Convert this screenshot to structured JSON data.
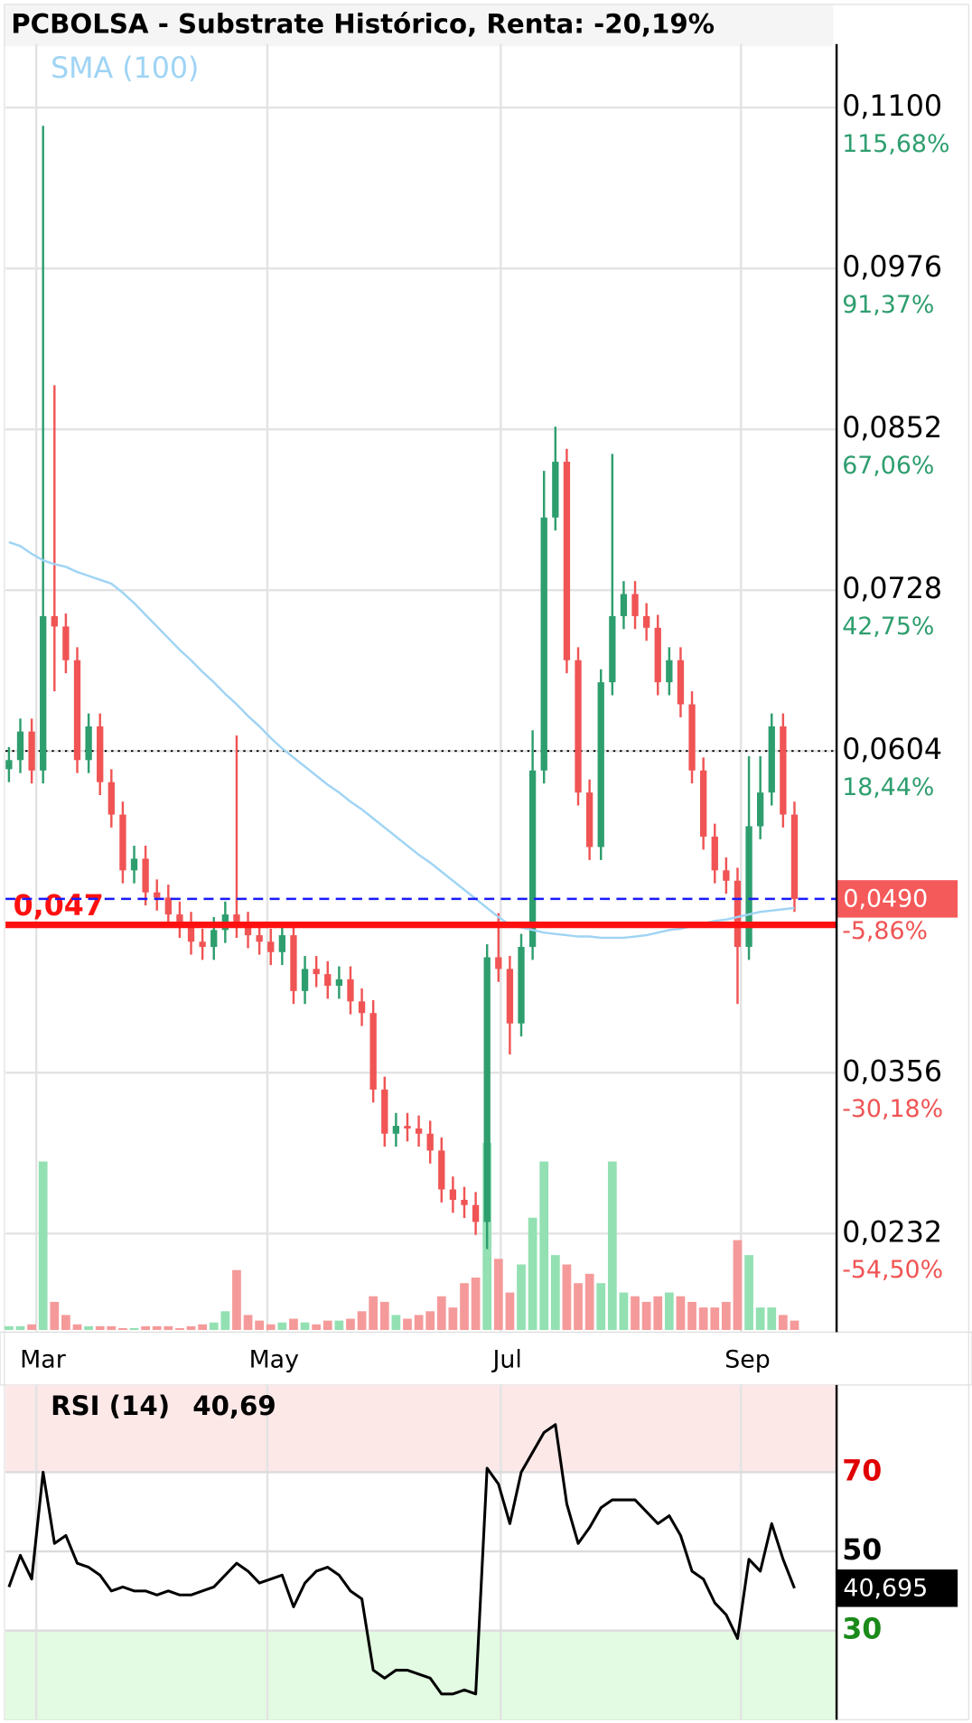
{
  "chart_data": [
    {
      "type": "candlestick",
      "title": "PCBOLSA - Substrate Histórico, Renta: -20,19%",
      "indicator_label": "SMA (100)",
      "open": [
        0.059,
        0.0597,
        0.0619,
        0.0589,
        0.0708,
        0.07,
        0.0674,
        0.0597,
        0.0623,
        0.058,
        0.0555,
        0.0512,
        0.0521,
        0.0495,
        0.0491,
        0.0478,
        0.047,
        0.0457,
        0.0453,
        0.0466,
        0.0478,
        0.047,
        0.0462,
        0.0457,
        0.0449,
        0.0462,
        0.0419,
        0.0436,
        0.0432,
        0.0423,
        0.0428,
        0.0411,
        0.0402,
        0.0343,
        0.0309,
        0.0315,
        0.0313,
        0.0309,
        0.0296,
        0.0266,
        0.0258,
        0.0254,
        0.0241,
        0.0445,
        0.0436,
        0.0394,
        0.0453,
        0.0589,
        0.0784,
        0.0827,
        0.0674,
        0.0572,
        0.053,
        0.0657,
        0.0708,
        0.0725,
        0.0708,
        0.0699,
        0.0657,
        0.0674,
        0.064,
        0.0589,
        0.0538,
        0.0512,
        0.0504,
        0.0453,
        0.0546,
        0.0572,
        0.0623,
        0.0555
      ],
      "high": [
        0.0607,
        0.0629,
        0.0629,
        0.1086,
        0.0886,
        0.071,
        0.0684,
        0.0633,
        0.0633,
        0.059,
        0.0565,
        0.0531,
        0.0531,
        0.0505,
        0.0501,
        0.0488,
        0.048,
        0.0467,
        0.0476,
        0.0488,
        0.0616,
        0.048,
        0.0472,
        0.0467,
        0.0472,
        0.0472,
        0.0446,
        0.0446,
        0.0442,
        0.0438,
        0.0438,
        0.0421,
        0.0412,
        0.0353,
        0.0325,
        0.0325,
        0.0323,
        0.0319,
        0.0306,
        0.0276,
        0.0268,
        0.0264,
        0.0455,
        0.0479,
        0.0446,
        0.0463,
        0.062,
        0.082,
        0.0854,
        0.0837,
        0.0684,
        0.0582,
        0.0667,
        0.0833,
        0.0735,
        0.0735,
        0.0718,
        0.0709,
        0.0684,
        0.0684,
        0.065,
        0.0599,
        0.0548,
        0.0522,
        0.0514,
        0.06,
        0.06,
        0.0633,
        0.0633,
        0.0565
      ],
      "low": [
        0.058,
        0.0587,
        0.0579,
        0.0579,
        0.065,
        0.0664,
        0.0587,
        0.0587,
        0.057,
        0.0545,
        0.0502,
        0.0502,
        0.0485,
        0.0481,
        0.0468,
        0.046,
        0.0447,
        0.0443,
        0.0443,
        0.0456,
        0.046,
        0.0452,
        0.0447,
        0.0439,
        0.0439,
        0.0409,
        0.0409,
        0.0422,
        0.0413,
        0.0413,
        0.0401,
        0.0392,
        0.0333,
        0.0299,
        0.0299,
        0.0303,
        0.0299,
        0.0286,
        0.0256,
        0.0248,
        0.0244,
        0.0231,
        0.022,
        0.0426,
        0.037,
        0.0384,
        0.0443,
        0.0579,
        0.0774,
        0.0664,
        0.0562,
        0.052,
        0.052,
        0.0647,
        0.0698,
        0.0698,
        0.0689,
        0.0647,
        0.0647,
        0.063,
        0.0579,
        0.0528,
        0.0502,
        0.0494,
        0.0409,
        0.0443,
        0.0536,
        0.0562,
        0.0545,
        0.048
      ],
      "close": [
        0.0597,
        0.0619,
        0.0589,
        0.0708,
        0.07,
        0.0674,
        0.0597,
        0.0623,
        0.058,
        0.0555,
        0.0512,
        0.0521,
        0.0495,
        0.0491,
        0.0478,
        0.047,
        0.0457,
        0.0453,
        0.0466,
        0.0478,
        0.047,
        0.0462,
        0.0457,
        0.0449,
        0.0462,
        0.0419,
        0.0436,
        0.0432,
        0.0423,
        0.0428,
        0.0411,
        0.0402,
        0.0343,
        0.0309,
        0.0315,
        0.0313,
        0.0309,
        0.0296,
        0.0266,
        0.0258,
        0.0254,
        0.0241,
        0.0445,
        0.0436,
        0.0394,
        0.0453,
        0.0589,
        0.0784,
        0.0827,
        0.0674,
        0.0572,
        0.053,
        0.0657,
        0.0708,
        0.0725,
        0.0708,
        0.0699,
        0.0657,
        0.0674,
        0.064,
        0.0589,
        0.0538,
        0.0512,
        0.0504,
        0.0453,
        0.0546,
        0.0572,
        0.0623,
        0.0555,
        0.049
      ],
      "volume": [
        2,
        2,
        3,
        90,
        15,
        8,
        3,
        2,
        2,
        2,
        1,
        1,
        2,
        2,
        2,
        1,
        2,
        3,
        4,
        10,
        32,
        8,
        5,
        3,
        4,
        6,
        4,
        3,
        5,
        5,
        6,
        10,
        18,
        15,
        8,
        6,
        8,
        10,
        18,
        12,
        25,
        28,
        100,
        38,
        20,
        35,
        60,
        90,
        40,
        35,
        25,
        30,
        25,
        90,
        20,
        18,
        15,
        18,
        20,
        18,
        15,
        12,
        12,
        15,
        48,
        40,
        12,
        12,
        8,
        5
      ],
      "sma": [
        0.0765,
        0.0762,
        0.0756,
        0.0751,
        0.0748,
        0.0746,
        0.0742,
        0.0739,
        0.0736,
        0.0733,
        0.0726,
        0.0718,
        0.0709,
        0.07,
        0.0691,
        0.0682,
        0.0674,
        0.0665,
        0.0657,
        0.0648,
        0.064,
        0.0631,
        0.0623,
        0.0614,
        0.0606,
        0.0599,
        0.0592,
        0.0585,
        0.0578,
        0.0572,
        0.0565,
        0.0559,
        0.0552,
        0.0545,
        0.0538,
        0.0531,
        0.0524,
        0.0518,
        0.0511,
        0.0504,
        0.0497,
        0.049,
        0.0483,
        0.0476,
        0.047,
        0.0468,
        0.0466,
        0.0464,
        0.0463,
        0.0462,
        0.0461,
        0.0461,
        0.046,
        0.046,
        0.046,
        0.0461,
        0.0462,
        0.0464,
        0.0466,
        0.0467,
        0.0469,
        0.0471,
        0.0473,
        0.0474,
        0.0476,
        0.0478,
        0.048,
        0.0481,
        0.0482,
        0.0483
      ],
      "up_color": "#2e9e6e",
      "down_color": "#f05454",
      "up_volume_color": "#93e0b3",
      "down_volume_color": "#f59a9a",
      "sma_color": "#9fd4f5",
      "xlim": [
        -0.3,
        72.7
      ],
      "xticks": [
        {
          "value": 2.4,
          "label": "Mar"
        },
        {
          "value": 22.7,
          "label": "May"
        },
        {
          "value": 43.2,
          "label": "Jul"
        },
        {
          "value": 64.3,
          "label": "Sep"
        }
      ],
      "ylim": [
        0.0156,
        0.1149
      ],
      "yticks": [
        {
          "value": 0.0232,
          "label": "0,0232"
        },
        {
          "value": 0.0356,
          "label": "0,0356"
        },
        {
          "value": 0.0604,
          "label": "0,0604"
        },
        {
          "value": 0.0728,
          "label": "0,0728"
        },
        {
          "value": 0.0852,
          "label": "0,0852"
        },
        {
          "value": 0.0976,
          "label": "0,0976"
        },
        {
          "value": 0.11,
          "label": "0,1100"
        }
      ],
      "ytick_returns": [
        "-54,50%",
        "-30,18%",
        "18,44%",
        "42,75%",
        "67,06%",
        "91,37%",
        "115,68%"
      ],
      "reference_price": 0.0604,
      "last_price": 0.049,
      "last_price_label": "0,0490",
      "last_return": "-5,86%",
      "support": 0.047,
      "support_label": "0,047",
      "grid": true
    },
    {
      "type": "line",
      "title": "RSI (14)",
      "value_label": "40,69",
      "values": [
        41,
        49,
        43,
        70,
        52,
        54,
        47,
        46,
        44,
        40,
        41,
        40,
        40,
        39,
        40,
        39,
        39,
        40,
        41,
        44,
        47,
        45,
        42,
        43,
        44,
        36,
        42,
        45,
        46,
        44,
        40,
        38,
        20,
        18,
        20,
        20,
        19,
        18,
        14,
        14,
        15,
        14,
        71,
        67,
        57,
        70,
        75,
        80,
        82,
        62,
        52,
        56,
        61,
        63,
        63,
        63,
        60,
        57,
        59,
        54,
        45,
        43,
        37,
        34,
        28,
        48,
        45,
        57,
        48,
        40.695
      ],
      "last_label": "40,695",
      "color": "#000000",
      "ylim": [
        7.5,
        92
      ],
      "yticks": [
        30,
        50,
        70
      ],
      "tick_colors": [
        "#1a8a1a",
        "#000000",
        "#e00000"
      ],
      "overbought": 70,
      "oversold": 30,
      "grid": true
    }
  ]
}
